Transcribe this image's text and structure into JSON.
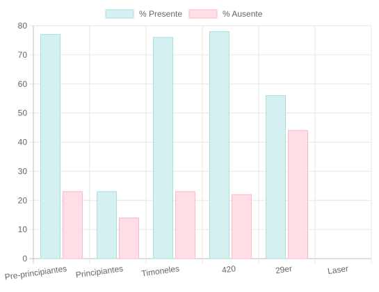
{
  "chart_data": {
    "type": "bar",
    "title": "",
    "xlabel": "",
    "ylabel": "",
    "categories": [
      "Pre-principiantes",
      "Principiantes",
      "Timoneles",
      "420",
      "29er",
      "Laser"
    ],
    "series": [
      {
        "name": "% Presente",
        "values": [
          77,
          23,
          76,
          78,
          56,
          0
        ],
        "fill": "#d5f0f0",
        "stroke": "#a8e0e0"
      },
      {
        "name": "% Ausente",
        "values": [
          23,
          14,
          23,
          22,
          44,
          0
        ],
        "fill": "#ffdfe5",
        "stroke": "#ffb8c6"
      }
    ],
    "ylim": [
      0,
      80
    ],
    "yticks": [
      0,
      10,
      20,
      30,
      40,
      50,
      60,
      70,
      80
    ],
    "grid": true,
    "legend": "top-center"
  }
}
